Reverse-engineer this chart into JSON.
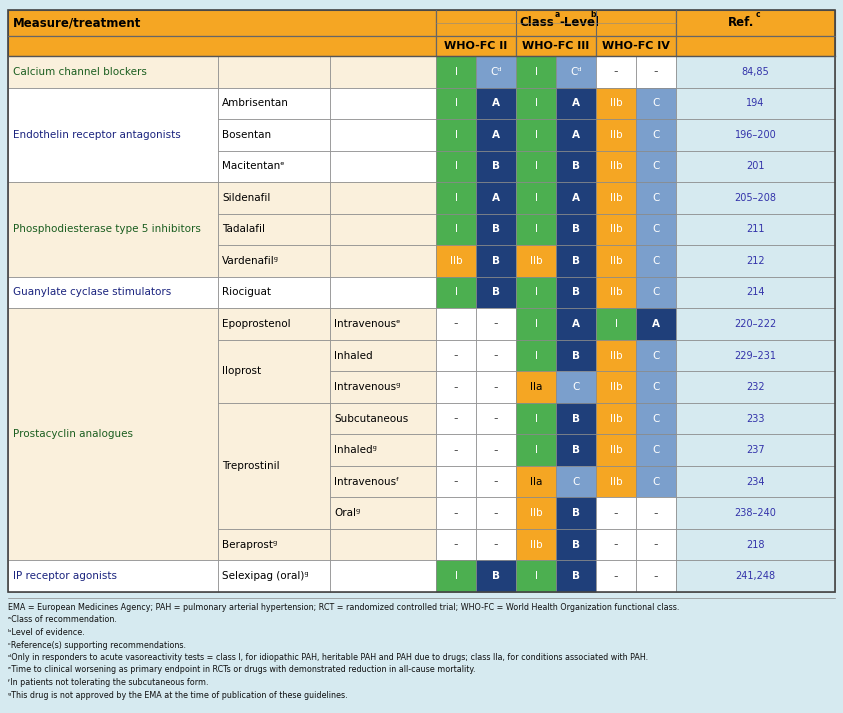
{
  "header_bg": "#F5A623",
  "green": "#4CAF50",
  "dark_blue": "#1F3F7A",
  "orange": "#F5A623",
  "light_blue": "#7B9FCC",
  "cream": "#FAF0DC",
  "white": "#FFFFFF",
  "page_bg": "#D6EAF0",
  "ref_color": "#3333AA",
  "group_green": "#2E7D32",
  "group_blue": "#1A237E",
  "footnotes": [
    "EMA = European Medicines Agency; PAH = pulmonary arterial hypertension; RCT = randomized controlled trial; WHO-FC = World Health Organization functional class.",
    "ᵃClass of recommendation.",
    "ᵇLevel of evidence.",
    "ᶜReference(s) supporting recommendations.",
    "ᵈOnly in responders to acute vasoreactivity tests = class I, for idiopathic PAH, heritable PAH and PAH due to drugs; class IIa, for conditions associated with PAH.",
    "ᵉTime to clinical worsening as primary endpoint in RCTs or drugs with demonstrated reduction in all-cause mortality.",
    "ᶠIn patients not tolerating the subcutaneous form.",
    "ᵍThis drug is not approved by the EMA at the time of publication of these guidelines."
  ],
  "rows": [
    {
      "group": "Calcium channel blockers",
      "drug": "",
      "route": "",
      "bg": "#FAF0DC",
      "cells": [
        {
          "text": "I",
          "bg": "#4CAF50",
          "fg": "#FFFFFF",
          "bold": false
        },
        {
          "text": "Cᵈ",
          "bg": "#7B9FCC",
          "fg": "#FFFFFF",
          "bold": false
        },
        {
          "text": "I",
          "bg": "#4CAF50",
          "fg": "#FFFFFF",
          "bold": false
        },
        {
          "text": "Cᵈ",
          "bg": "#7B9FCC",
          "fg": "#FFFFFF",
          "bold": false
        },
        {
          "text": "-",
          "bg": "#FFFFFF",
          "fg": "#555555",
          "bold": false
        },
        {
          "text": "-",
          "bg": "#FFFFFF",
          "fg": "#555555",
          "bold": false
        }
      ],
      "ref": "84,85"
    },
    {
      "group": "Endothelin receptor antagonists",
      "drug": "Ambrisentan",
      "route": "",
      "bg": "#FFFFFF",
      "cells": [
        {
          "text": "I",
          "bg": "#4CAF50",
          "fg": "#FFFFFF",
          "bold": false
        },
        {
          "text": "A",
          "bg": "#1F3F7A",
          "fg": "#FFFFFF",
          "bold": true
        },
        {
          "text": "I",
          "bg": "#4CAF50",
          "fg": "#FFFFFF",
          "bold": false
        },
        {
          "text": "A",
          "bg": "#1F3F7A",
          "fg": "#FFFFFF",
          "bold": true
        },
        {
          "text": "IIb",
          "bg": "#F5A623",
          "fg": "#FFFFFF",
          "bold": false
        },
        {
          "text": "C",
          "bg": "#7B9FCC",
          "fg": "#FFFFFF",
          "bold": false
        }
      ],
      "ref": "194"
    },
    {
      "group": "",
      "drug": "Bosentan",
      "route": "",
      "bg": "#FFFFFF",
      "cells": [
        {
          "text": "I",
          "bg": "#4CAF50",
          "fg": "#FFFFFF",
          "bold": false
        },
        {
          "text": "A",
          "bg": "#1F3F7A",
          "fg": "#FFFFFF",
          "bold": true
        },
        {
          "text": "I",
          "bg": "#4CAF50",
          "fg": "#FFFFFF",
          "bold": false
        },
        {
          "text": "A",
          "bg": "#1F3F7A",
          "fg": "#FFFFFF",
          "bold": true
        },
        {
          "text": "IIb",
          "bg": "#F5A623",
          "fg": "#FFFFFF",
          "bold": false
        },
        {
          "text": "C",
          "bg": "#7B9FCC",
          "fg": "#FFFFFF",
          "bold": false
        }
      ],
      "ref": "196–200"
    },
    {
      "group": "",
      "drug": "Macitentanᵉ",
      "route": "",
      "bg": "#FFFFFF",
      "cells": [
        {
          "text": "I",
          "bg": "#4CAF50",
          "fg": "#FFFFFF",
          "bold": false
        },
        {
          "text": "B",
          "bg": "#1F3F7A",
          "fg": "#FFFFFF",
          "bold": true
        },
        {
          "text": "I",
          "bg": "#4CAF50",
          "fg": "#FFFFFF",
          "bold": false
        },
        {
          "text": "B",
          "bg": "#1F3F7A",
          "fg": "#FFFFFF",
          "bold": true
        },
        {
          "text": "IIb",
          "bg": "#F5A623",
          "fg": "#FFFFFF",
          "bold": false
        },
        {
          "text": "C",
          "bg": "#7B9FCC",
          "fg": "#FFFFFF",
          "bold": false
        }
      ],
      "ref": "201"
    },
    {
      "group": "Phosphodiesterase type 5 inhibitors",
      "drug": "Sildenafil",
      "route": "",
      "bg": "#FAF0DC",
      "cells": [
        {
          "text": "I",
          "bg": "#4CAF50",
          "fg": "#FFFFFF",
          "bold": false
        },
        {
          "text": "A",
          "bg": "#1F3F7A",
          "fg": "#FFFFFF",
          "bold": true
        },
        {
          "text": "I",
          "bg": "#4CAF50",
          "fg": "#FFFFFF",
          "bold": false
        },
        {
          "text": "A",
          "bg": "#1F3F7A",
          "fg": "#FFFFFF",
          "bold": true
        },
        {
          "text": "IIb",
          "bg": "#F5A623",
          "fg": "#FFFFFF",
          "bold": false
        },
        {
          "text": "C",
          "bg": "#7B9FCC",
          "fg": "#FFFFFF",
          "bold": false
        }
      ],
      "ref": "205–208"
    },
    {
      "group": "",
      "drug": "Tadalafil",
      "route": "",
      "bg": "#FAF0DC",
      "cells": [
        {
          "text": "I",
          "bg": "#4CAF50",
          "fg": "#FFFFFF",
          "bold": false
        },
        {
          "text": "B",
          "bg": "#1F3F7A",
          "fg": "#FFFFFF",
          "bold": true
        },
        {
          "text": "I",
          "bg": "#4CAF50",
          "fg": "#FFFFFF",
          "bold": false
        },
        {
          "text": "B",
          "bg": "#1F3F7A",
          "fg": "#FFFFFF",
          "bold": true
        },
        {
          "text": "IIb",
          "bg": "#F5A623",
          "fg": "#FFFFFF",
          "bold": false
        },
        {
          "text": "C",
          "bg": "#7B9FCC",
          "fg": "#FFFFFF",
          "bold": false
        }
      ],
      "ref": "211"
    },
    {
      "group": "",
      "drug": "Vardenafilᵍ",
      "route": "",
      "bg": "#FAF0DC",
      "cells": [
        {
          "text": "IIb",
          "bg": "#F5A623",
          "fg": "#FFFFFF",
          "bold": false
        },
        {
          "text": "B",
          "bg": "#1F3F7A",
          "fg": "#FFFFFF",
          "bold": true
        },
        {
          "text": "IIb",
          "bg": "#F5A623",
          "fg": "#FFFFFF",
          "bold": false
        },
        {
          "text": "B",
          "bg": "#1F3F7A",
          "fg": "#FFFFFF",
          "bold": true
        },
        {
          "text": "IIb",
          "bg": "#F5A623",
          "fg": "#FFFFFF",
          "bold": false
        },
        {
          "text": "C",
          "bg": "#7B9FCC",
          "fg": "#FFFFFF",
          "bold": false
        }
      ],
      "ref": "212"
    },
    {
      "group": "Guanylate cyclase stimulators",
      "drug": "Riociguat",
      "route": "",
      "bg": "#FFFFFF",
      "cells": [
        {
          "text": "I",
          "bg": "#4CAF50",
          "fg": "#FFFFFF",
          "bold": false
        },
        {
          "text": "B",
          "bg": "#1F3F7A",
          "fg": "#FFFFFF",
          "bold": true
        },
        {
          "text": "I",
          "bg": "#4CAF50",
          "fg": "#FFFFFF",
          "bold": false
        },
        {
          "text": "B",
          "bg": "#1F3F7A",
          "fg": "#FFFFFF",
          "bold": true
        },
        {
          "text": "IIb",
          "bg": "#F5A623",
          "fg": "#FFFFFF",
          "bold": false
        },
        {
          "text": "C",
          "bg": "#7B9FCC",
          "fg": "#FFFFFF",
          "bold": false
        }
      ],
      "ref": "214"
    },
    {
      "group": "Prostacyclin analogues",
      "drug": "Epoprostenol",
      "route": "Intravenousᵉ",
      "bg": "#FAF0DC",
      "cells": [
        {
          "text": "-",
          "bg": "#FFFFFF",
          "fg": "#555555",
          "bold": false
        },
        {
          "text": "-",
          "bg": "#FFFFFF",
          "fg": "#555555",
          "bold": false
        },
        {
          "text": "I",
          "bg": "#4CAF50",
          "fg": "#FFFFFF",
          "bold": false
        },
        {
          "text": "A",
          "bg": "#1F3F7A",
          "fg": "#FFFFFF",
          "bold": true
        },
        {
          "text": "I",
          "bg": "#4CAF50",
          "fg": "#FFFFFF",
          "bold": false
        },
        {
          "text": "A",
          "bg": "#1F3F7A",
          "fg": "#FFFFFF",
          "bold": true
        }
      ],
      "ref": "220–222"
    },
    {
      "group": "",
      "drug": "Iloprost",
      "route": "Inhaled",
      "bg": "#FAF0DC",
      "cells": [
        {
          "text": "-",
          "bg": "#FFFFFF",
          "fg": "#555555",
          "bold": false
        },
        {
          "text": "-",
          "bg": "#FFFFFF",
          "fg": "#555555",
          "bold": false
        },
        {
          "text": "I",
          "bg": "#4CAF50",
          "fg": "#FFFFFF",
          "bold": false
        },
        {
          "text": "B",
          "bg": "#1F3F7A",
          "fg": "#FFFFFF",
          "bold": true
        },
        {
          "text": "IIb",
          "bg": "#F5A623",
          "fg": "#FFFFFF",
          "bold": false
        },
        {
          "text": "C",
          "bg": "#7B9FCC",
          "fg": "#FFFFFF",
          "bold": false
        }
      ],
      "ref": "229–231"
    },
    {
      "group": "",
      "drug": "",
      "route": "Intravenousᵍ",
      "bg": "#FAF0DC",
      "cells": [
        {
          "text": "-",
          "bg": "#FFFFFF",
          "fg": "#555555",
          "bold": false
        },
        {
          "text": "-",
          "bg": "#FFFFFF",
          "fg": "#555555",
          "bold": false
        },
        {
          "text": "IIa",
          "bg": "#F5A623",
          "fg": "#000000",
          "bold": false
        },
        {
          "text": "C",
          "bg": "#7B9FCC",
          "fg": "#FFFFFF",
          "bold": false
        },
        {
          "text": "IIb",
          "bg": "#F5A623",
          "fg": "#FFFFFF",
          "bold": false
        },
        {
          "text": "C",
          "bg": "#7B9FCC",
          "fg": "#FFFFFF",
          "bold": false
        }
      ],
      "ref": "232"
    },
    {
      "group": "",
      "drug": "Treprostinil",
      "route": "Subcutaneous",
      "bg": "#FAF0DC",
      "cells": [
        {
          "text": "-",
          "bg": "#FFFFFF",
          "fg": "#555555",
          "bold": false
        },
        {
          "text": "-",
          "bg": "#FFFFFF",
          "fg": "#555555",
          "bold": false
        },
        {
          "text": "I",
          "bg": "#4CAF50",
          "fg": "#FFFFFF",
          "bold": false
        },
        {
          "text": "B",
          "bg": "#1F3F7A",
          "fg": "#FFFFFF",
          "bold": true
        },
        {
          "text": "IIb",
          "bg": "#F5A623",
          "fg": "#FFFFFF",
          "bold": false
        },
        {
          "text": "C",
          "bg": "#7B9FCC",
          "fg": "#FFFFFF",
          "bold": false
        }
      ],
      "ref": "233"
    },
    {
      "group": "",
      "drug": "",
      "route": "Inhaledᵍ",
      "bg": "#FAF0DC",
      "cells": [
        {
          "text": "-",
          "bg": "#FFFFFF",
          "fg": "#555555",
          "bold": false
        },
        {
          "text": "-",
          "bg": "#FFFFFF",
          "fg": "#555555",
          "bold": false
        },
        {
          "text": "I",
          "bg": "#4CAF50",
          "fg": "#FFFFFF",
          "bold": false
        },
        {
          "text": "B",
          "bg": "#1F3F7A",
          "fg": "#FFFFFF",
          "bold": true
        },
        {
          "text": "IIb",
          "bg": "#F5A623",
          "fg": "#FFFFFF",
          "bold": false
        },
        {
          "text": "C",
          "bg": "#7B9FCC",
          "fg": "#FFFFFF",
          "bold": false
        }
      ],
      "ref": "237"
    },
    {
      "group": "",
      "drug": "",
      "route": "Intravenousᶠ",
      "bg": "#FAF0DC",
      "cells": [
        {
          "text": "-",
          "bg": "#FFFFFF",
          "fg": "#555555",
          "bold": false
        },
        {
          "text": "-",
          "bg": "#FFFFFF",
          "fg": "#555555",
          "bold": false
        },
        {
          "text": "IIa",
          "bg": "#F5A623",
          "fg": "#000000",
          "bold": false
        },
        {
          "text": "C",
          "bg": "#7B9FCC",
          "fg": "#FFFFFF",
          "bold": false
        },
        {
          "text": "IIb",
          "bg": "#F5A623",
          "fg": "#FFFFFF",
          "bold": false
        },
        {
          "text": "C",
          "bg": "#7B9FCC",
          "fg": "#FFFFFF",
          "bold": false
        }
      ],
      "ref": "234"
    },
    {
      "group": "",
      "drug": "",
      "route": "Oralᵍ",
      "bg": "#FAF0DC",
      "cells": [
        {
          "text": "-",
          "bg": "#FFFFFF",
          "fg": "#555555",
          "bold": false
        },
        {
          "text": "-",
          "bg": "#FFFFFF",
          "fg": "#555555",
          "bold": false
        },
        {
          "text": "IIb",
          "bg": "#F5A623",
          "fg": "#FFFFFF",
          "bold": false
        },
        {
          "text": "B",
          "bg": "#1F3F7A",
          "fg": "#FFFFFF",
          "bold": true
        },
        {
          "text": "-",
          "bg": "#FFFFFF",
          "fg": "#555555",
          "bold": false
        },
        {
          "text": "-",
          "bg": "#FFFFFF",
          "fg": "#555555",
          "bold": false
        }
      ],
      "ref": "238–240"
    },
    {
      "group": "",
      "drug": "Beraprostᵍ",
      "route": "",
      "bg": "#FAF0DC",
      "cells": [
        {
          "text": "-",
          "bg": "#FFFFFF",
          "fg": "#555555",
          "bold": false
        },
        {
          "text": "-",
          "bg": "#FFFFFF",
          "fg": "#555555",
          "bold": false
        },
        {
          "text": "IIb",
          "bg": "#F5A623",
          "fg": "#FFFFFF",
          "bold": false
        },
        {
          "text": "B",
          "bg": "#1F3F7A",
          "fg": "#FFFFFF",
          "bold": true
        },
        {
          "text": "-",
          "bg": "#FFFFFF",
          "fg": "#555555",
          "bold": false
        },
        {
          "text": "-",
          "bg": "#FFFFFF",
          "fg": "#555555",
          "bold": false
        }
      ],
      "ref": "218"
    },
    {
      "group": "IP receptor agonists",
      "drug": "Selexipag (oral)ᵍ",
      "route": "",
      "bg": "#FFFFFF",
      "cells": [
        {
          "text": "I",
          "bg": "#4CAF50",
          "fg": "#FFFFFF",
          "bold": false
        },
        {
          "text": "B",
          "bg": "#1F3F7A",
          "fg": "#FFFFFF",
          "bold": true
        },
        {
          "text": "I",
          "bg": "#4CAF50",
          "fg": "#FFFFFF",
          "bold": false
        },
        {
          "text": "B",
          "bg": "#1F3F7A",
          "fg": "#FFFFFF",
          "bold": true
        },
        {
          "text": "-",
          "bg": "#FFFFFF",
          "fg": "#555555",
          "bold": false
        },
        {
          "text": "-",
          "bg": "#FFFFFF",
          "fg": "#555555",
          "bold": false
        }
      ],
      "ref": "241,248"
    }
  ]
}
